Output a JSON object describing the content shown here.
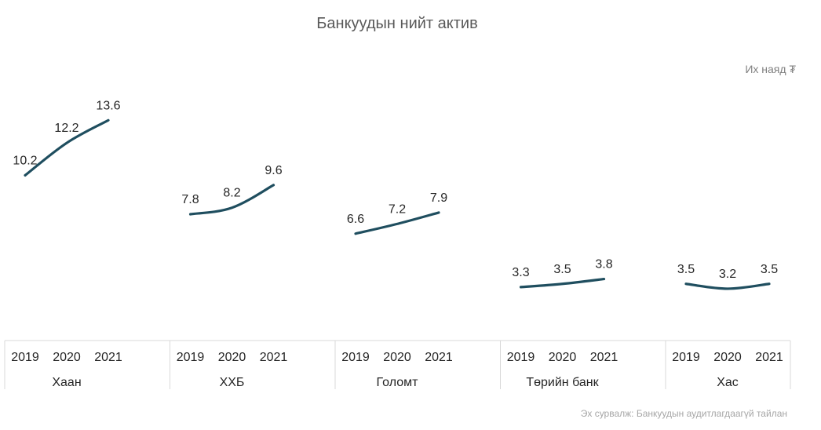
{
  "chart_data": {
    "type": "line",
    "title": "Банкуудын нийт актив",
    "unit_label": "Их наяд ₮",
    "source": "Эх сурвалж: Банкуудын аудитлагдаагүй тайлан",
    "years": [
      "2019",
      "2020",
      "2021"
    ],
    "ylim": [
      0,
      14
    ],
    "line_color": "#1f4e5f",
    "groups": [
      {
        "name": "Хаан",
        "values": [
          10.2,
          12.2,
          13.6
        ]
      },
      {
        "name": "ХХБ",
        "values": [
          7.8,
          8.2,
          9.6
        ]
      },
      {
        "name": "Голомт",
        "values": [
          6.6,
          7.2,
          7.9
        ]
      },
      {
        "name": "Төрийн банк",
        "values": [
          3.3,
          3.5,
          3.8
        ]
      },
      {
        "name": "Хас",
        "values": [
          3.5,
          3.2,
          3.5
        ]
      }
    ]
  }
}
